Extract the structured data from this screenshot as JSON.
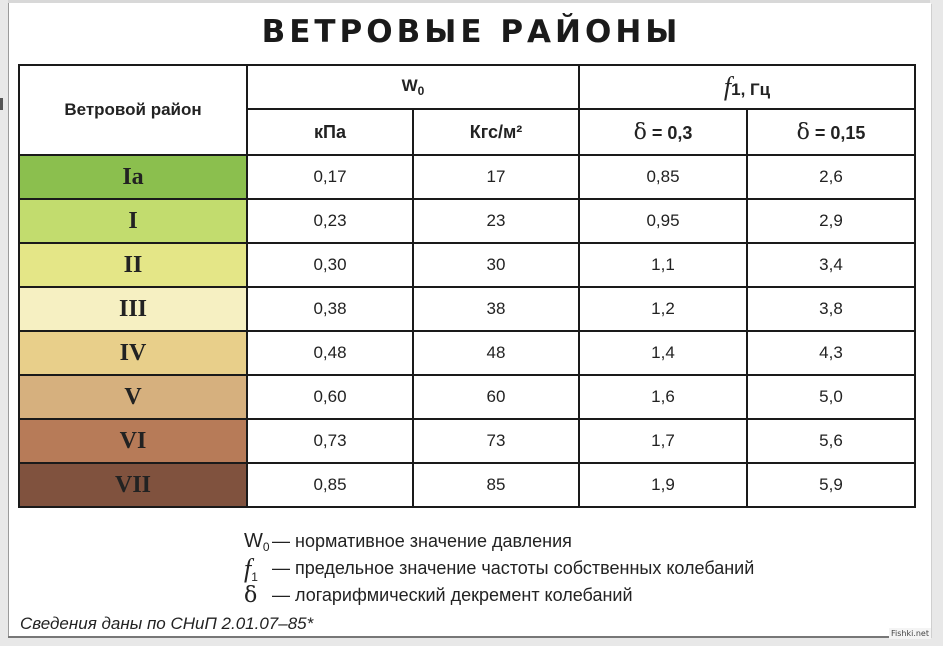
{
  "title": "ВЕТРОВЫЕ РАЙОНЫ",
  "header": {
    "region": "Ветровой район",
    "w_symbol": "W",
    "w_sub": "0",
    "f_symbol": "f",
    "f_sub": "1",
    "f_unit": ", Гц",
    "kpa": "кПа",
    "kgs": "Кгс/м²",
    "delta": "δ",
    "delta1": " = 0,3",
    "delta2": " = 0,15"
  },
  "rows": [
    {
      "region": "Ia",
      "color": "#8bbf4e",
      "kpa": "0,17",
      "kgs": "17",
      "d1": "0,85",
      "d2": "2,6"
    },
    {
      "region": "I",
      "color": "#c2dc6e",
      "kpa": "0,23",
      "kgs": "23",
      "d1": "0,95",
      "d2": "2,9"
    },
    {
      "region": "II",
      "color": "#e4e687",
      "kpa": "0,30",
      "kgs": "30",
      "d1": "1,1",
      "d2": "3,4"
    },
    {
      "region": "III",
      "color": "#f6f0c2",
      "kpa": "0,38",
      "kgs": "38",
      "d1": "1,2",
      "d2": "3,8"
    },
    {
      "region": "IV",
      "color": "#e8cf8a",
      "kpa": "0,48",
      "kgs": "48",
      "d1": "1,4",
      "d2": "4,3"
    },
    {
      "region": "V",
      "color": "#d6b07e",
      "kpa": "0,60",
      "kgs": "60",
      "d1": "1,6",
      "d2": "5,0"
    },
    {
      "region": "VI",
      "color": "#b77b58",
      "kpa": "0,73",
      "kgs": "73",
      "d1": "1,7",
      "d2": "5,6"
    },
    {
      "region": "VII",
      "color": "#80523e",
      "kpa": "0,85",
      "kgs": "85",
      "d1": "1,9",
      "d2": "5,9"
    }
  ],
  "legend": [
    {
      "symbol": "W",
      "sub": "0",
      "text": "— нормативное значение давления"
    },
    {
      "symbol": "f",
      "sub": "1",
      "text": "— предельное значение частоты собственных колебаний"
    },
    {
      "symbol": "δ",
      "sub": "",
      "text": "— логарифмический декремент колебаний"
    }
  ],
  "note": "Сведения даны по СНиП 2.01.07–85*",
  "watermark": "Fishki.net"
}
